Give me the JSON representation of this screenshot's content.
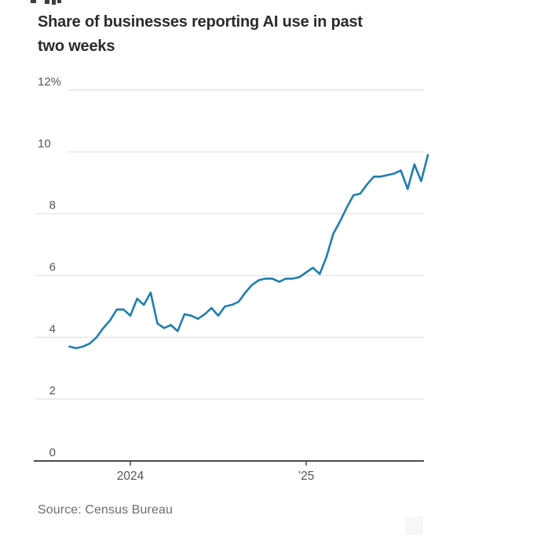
{
  "page": {
    "title_lines": [
      "Share of businesses reporting AI use in past",
      "two weeks"
    ],
    "source": "Source: Census Bureau"
  },
  "chart_data": {
    "type": "line",
    "title": "Share of businesses reporting AI use in past two weeks",
    "unit": "%",
    "x_description": "Biweekly survey periods, late 2023 through 2025",
    "values": [
      3.7,
      3.65,
      3.7,
      3.8,
      4.0,
      4.3,
      4.55,
      4.9,
      4.9,
      4.7,
      5.25,
      5.05,
      5.45,
      4.45,
      4.3,
      4.4,
      4.2,
      4.75,
      4.7,
      4.6,
      4.75,
      4.95,
      4.7,
      5.0,
      5.05,
      5.15,
      5.45,
      5.7,
      5.85,
      5.9,
      5.9,
      5.8,
      5.9,
      5.9,
      5.95,
      6.1,
      6.25,
      6.05,
      6.6,
      7.35,
      7.75,
      8.2,
      8.6,
      8.65,
      8.95,
      9.2,
      9.2,
      9.25,
      9.3,
      9.4,
      8.8,
      9.6,
      9.05,
      9.9
    ],
    "ylim": [
      0,
      12
    ],
    "yticks": [
      {
        "value": 12,
        "label": "12%"
      },
      {
        "value": 10,
        "label": "10"
      },
      {
        "value": 8,
        "label": "8"
      },
      {
        "value": 6,
        "label": "6"
      },
      {
        "value": 4,
        "label": "4"
      },
      {
        "value": 2,
        "label": "2"
      },
      {
        "value": 0,
        "label": "0"
      }
    ],
    "xticks": [
      {
        "index": 9,
        "label": "2024"
      },
      {
        "index": 35,
        "label": "’25"
      }
    ],
    "grid": "horizontal",
    "legend": "none",
    "line_color": "#1f7db1",
    "axis_color": "#4a4a4a",
    "gridline_color": "#e4e4e4",
    "label_color": "#565656"
  }
}
